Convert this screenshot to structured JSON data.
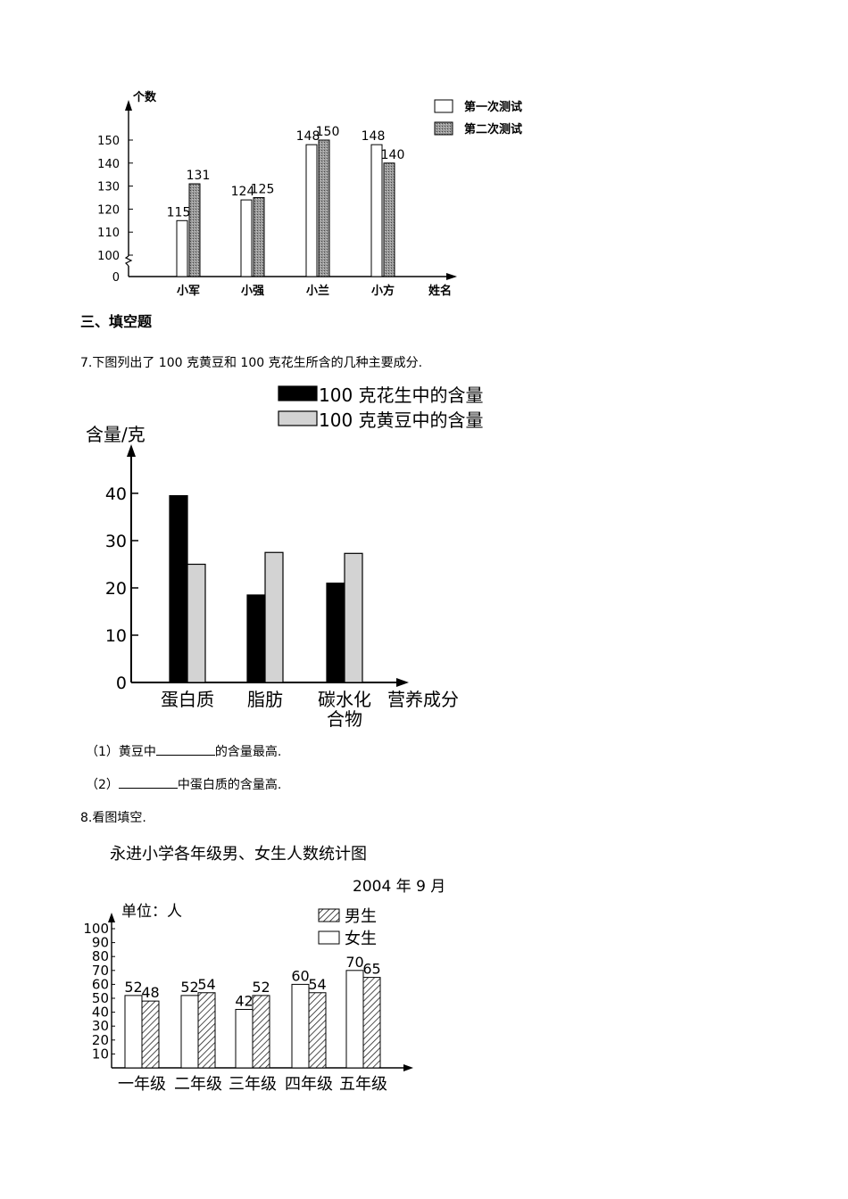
{
  "section_heading": "三、填空题",
  "q7": {
    "stem": "7.下图列出了 100 克黄豆和 100 克花生所含的几种主要成分.",
    "sub1_prefix": "（1）黄豆中",
    "sub1_suffix": "的含量最高.",
    "sub2_prefix": "（2）",
    "sub2_suffix": "中蛋白质的含量高."
  },
  "q8": {
    "stem": "8.看图填空."
  },
  "chart_data": [
    {
      "type": "bar",
      "ylabel": "个数",
      "xlabel": "姓名",
      "categories": [
        "小军",
        "小强",
        "小兰",
        "小方"
      ],
      "series": [
        {
          "name": "第一次测试",
          "values": [
            115,
            124,
            148,
            148
          ],
          "pattern": "white"
        },
        {
          "name": "第二次测试",
          "values": [
            131,
            125,
            150,
            140
          ],
          "pattern": "stipple"
        }
      ],
      "data_labels": [
        [
          "115",
          "124",
          "148",
          "148"
        ],
        [
          "131",
          "125",
          "150",
          "140"
        ]
      ],
      "yticks": [
        "0",
        "100",
        "110",
        "120",
        "130",
        "140",
        "150"
      ],
      "ylim": [
        100,
        150
      ],
      "axis_break": true,
      "legend": "top-right",
      "colors": {
        "stipple": "#8c8c8c"
      }
    },
    {
      "type": "bar",
      "ylabel": "含量/克",
      "xlabel": "营养成分",
      "categories": [
        "蛋白质",
        "脂肪",
        "碳水化合物"
      ],
      "category_lines": [
        [
          "蛋白质"
        ],
        [
          "脂肪"
        ],
        [
          "碳水化",
          "合物"
        ]
      ],
      "series": [
        {
          "name": "100 克花生中的含量",
          "values": [
            39.5,
            18.5,
            21
          ],
          "color": "#000000"
        },
        {
          "name": "100 克黄豆中的含量",
          "values": [
            25,
            27.5,
            27.3
          ],
          "color": "#d3d3d3"
        }
      ],
      "yticks": [
        "0",
        "10",
        "20",
        "30",
        "40"
      ],
      "ylim": [
        0,
        48
      ],
      "legend": "top"
    },
    {
      "type": "bar",
      "title": "永进小学各年级男、女生人数统计图",
      "subtitle": "2004 年 9 月",
      "unit_label": "单位：人",
      "categories": [
        "一年级",
        "二年级",
        "三年级",
        "四年级",
        "五年级"
      ],
      "series": [
        {
          "name": "女生",
          "values": [
            52,
            52,
            42,
            60,
            70
          ],
          "pattern": "white"
        },
        {
          "name": "男生",
          "values": [
            48,
            54,
            52,
            54,
            65
          ],
          "pattern": "hatched"
        }
      ],
      "data_labels": [
        [
          "52",
          "52",
          "42",
          "60",
          "70"
        ],
        [
          "48",
          "54",
          "52",
          "54",
          "65"
        ]
      ],
      "legend_order": [
        "男生",
        "女生"
      ],
      "yticks": [
        "10",
        "20",
        "30",
        "40",
        "50",
        "60",
        "70",
        "80",
        "90",
        "100"
      ],
      "ylim": [
        0,
        100
      ],
      "legend": "top-right"
    }
  ]
}
